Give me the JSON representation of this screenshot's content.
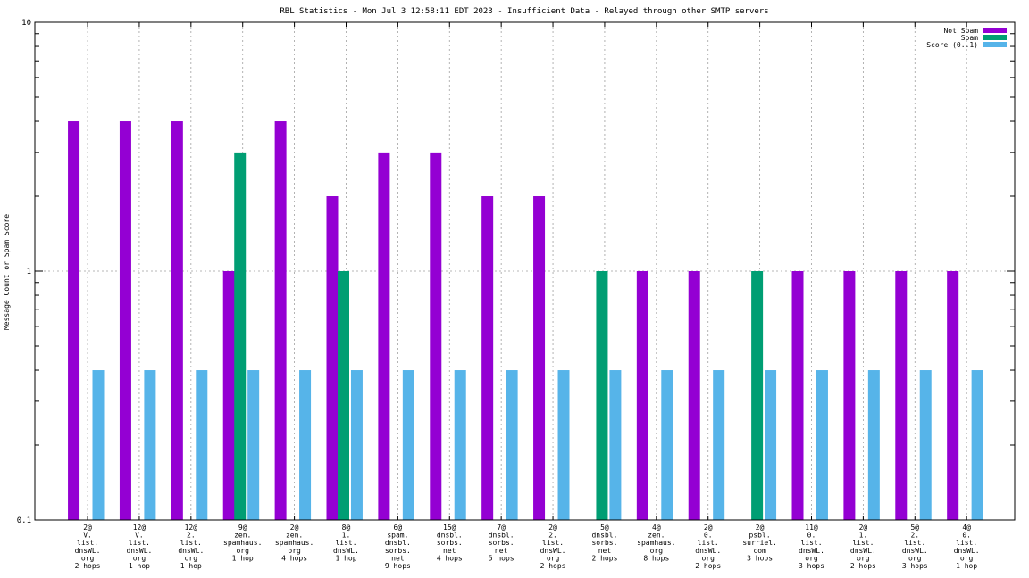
{
  "chart_data": {
    "type": "bar",
    "title": "RBL Statistics - Mon Jul  3 12:58:11 EDT 2023 - Insufficient Data - Relayed through other SMTP servers",
    "xlabel": "",
    "ylabel": "Message Count or Spam Score",
    "yscale": "log",
    "ylim": [
      0.1,
      10
    ],
    "yticks": [
      "0.1",
      "1",
      "10"
    ],
    "grid": true,
    "legend_position": "top-right",
    "categories": [
      [
        "2@",
        "V.",
        "list.",
        "dnsWL.",
        "org",
        "2 hops"
      ],
      [
        "12@",
        "V.",
        "list.",
        "dnsWL.",
        "org",
        "1 hop"
      ],
      [
        "12@",
        "2.",
        "list.",
        "dnsWL.",
        "org",
        "1 hop"
      ],
      [
        "9@",
        "zen.",
        "spamhaus.",
        "org",
        "1 hop"
      ],
      [
        "2@",
        "zen.",
        "spamhaus.",
        "org",
        "4 hops"
      ],
      [
        "8@",
        "1.",
        "list.",
        "dnsWL.",
        "1 hop"
      ],
      [
        "6@",
        "spam.",
        "dnsbl.",
        "sorbs.",
        "net",
        "9 hops"
      ],
      [
        "15@",
        "dnsbl.",
        "sorbs.",
        "net",
        "4 hops"
      ],
      [
        "7@",
        "dnsbl.",
        "sorbs.",
        "net",
        "5 hops"
      ],
      [
        "2@",
        "2.",
        "list.",
        "dnsWL.",
        "org",
        "2 hops"
      ],
      [
        "5@",
        "dnsbl.",
        "sorbs.",
        "net",
        "2 hops"
      ],
      [
        "4@",
        "zen.",
        "spamhaus.",
        "org",
        "8 hops"
      ],
      [
        "2@",
        "0.",
        "list.",
        "dnsWL.",
        "org",
        "2 hops"
      ],
      [
        "2@",
        "psbl.",
        "surriel.",
        "com",
        "3 hops"
      ],
      [
        "11@",
        "0.",
        "list.",
        "dnsWL.",
        "org",
        "3 hops"
      ],
      [
        "2@",
        "1.",
        "list.",
        "dnsWL.",
        "org",
        "2 hops"
      ],
      [
        "5@",
        "2.",
        "list.",
        "dnsWL.",
        "org",
        "3 hops"
      ],
      [
        "4@",
        "0.",
        "list.",
        "dnsWL.",
        "org",
        "1 hop"
      ]
    ],
    "series": [
      {
        "name": "Not Spam",
        "color": "#9400d3",
        "values": [
          4,
          4,
          4,
          1,
          4,
          2,
          3,
          3,
          2,
          2,
          0,
          1,
          1,
          0,
          1,
          1,
          1,
          1
        ]
      },
      {
        "name": "Spam",
        "color": "#009e73",
        "values": [
          0,
          0,
          0,
          3,
          0,
          1,
          0,
          0,
          0,
          0,
          1,
          0,
          0,
          1,
          0,
          0,
          0,
          0
        ]
      },
      {
        "name": "Score (0..1)",
        "color": "#56b4e9",
        "values": [
          0.4,
          0.4,
          0.4,
          0.4,
          0.4,
          0.4,
          0.4,
          0.4,
          0.4,
          0.4,
          0.4,
          0.4,
          0.4,
          0.4,
          0.4,
          0.4,
          0.4,
          0.4
        ]
      }
    ]
  }
}
